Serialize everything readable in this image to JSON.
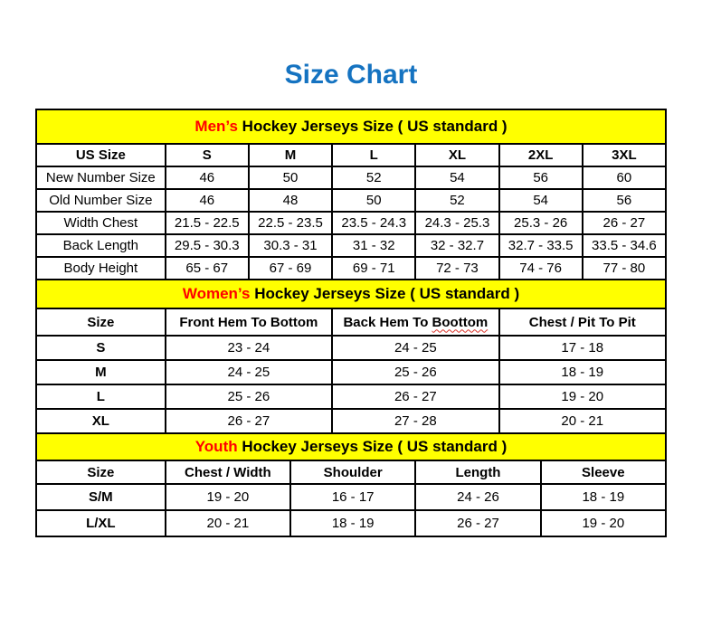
{
  "page": {
    "title": "Size Chart"
  },
  "colors": {
    "title": "#1573C1",
    "accent": "#FF0000",
    "band_background": "#FFFF00",
    "border": "#000000",
    "spellcheck_underline": "#D93025"
  },
  "sections": {
    "men": {
      "heading_accent": "Men’s",
      "heading_rest": " Hockey Jerseys Size ( US standard )",
      "columns": [
        "US Size",
        "S",
        "M",
        "L",
        "XL",
        "2XL",
        "3XL"
      ],
      "rows": [
        {
          "label": "New Number Size",
          "values": [
            "46",
            "50",
            "52",
            "54",
            "56",
            "60"
          ]
        },
        {
          "label": "Old Number Size",
          "values": [
            "46",
            "48",
            "50",
            "52",
            "54",
            "56"
          ]
        },
        {
          "label": "Width Chest",
          "values": [
            "21.5 - 22.5",
            "22.5 - 23.5",
            "23.5 - 24.3",
            "24.3 - 25.3",
            "25.3 - 26",
            "26 - 27"
          ]
        },
        {
          "label": "Back Length",
          "values": [
            "29.5 - 30.3",
            "30.3 - 31",
            "31 - 32",
            "32 - 32.7",
            "32.7 - 33.5",
            "33.5 - 34.6"
          ]
        },
        {
          "label": "Body Height",
          "values": [
            "65 - 67",
            "67 - 69",
            "69 - 71",
            "72 - 73",
            "74 - 76",
            "77 - 80"
          ]
        }
      ]
    },
    "women": {
      "heading_accent": "Women’s",
      "heading_rest": " Hockey Jerseys Size ( US standard )",
      "columns": [
        "Size",
        "Front Hem To Bottom",
        {
          "before": "Back Hem To ",
          "word": "Boottom"
        },
        "Chest / Pit To Pit"
      ],
      "rows": [
        {
          "label": "S",
          "values": [
            "23 - 24",
            "24 - 25",
            "17 - 18"
          ]
        },
        {
          "label": "M",
          "values": [
            "24 - 25",
            "25 - 26",
            "18 - 19"
          ]
        },
        {
          "label": "L",
          "values": [
            "25 - 26",
            "26 - 27",
            "19 - 20"
          ]
        },
        {
          "label": "XL",
          "values": [
            "26 - 27",
            "27 - 28",
            "20 - 21"
          ]
        }
      ]
    },
    "youth": {
      "heading_accent": "Youth",
      "heading_rest": " Hockey Jerseys Size ( US standard )",
      "columns": [
        "Size",
        "Chest / Width",
        "Shoulder",
        "Length",
        "Sleeve"
      ],
      "rows": [
        {
          "label": "S/M",
          "values": [
            "19 - 20",
            "16 - 17",
            "24 - 26",
            "18 - 19"
          ]
        },
        {
          "label": "L/XL",
          "values": [
            "20 - 21",
            "18 - 19",
            "26 - 27",
            "19 - 20"
          ]
        }
      ]
    }
  }
}
